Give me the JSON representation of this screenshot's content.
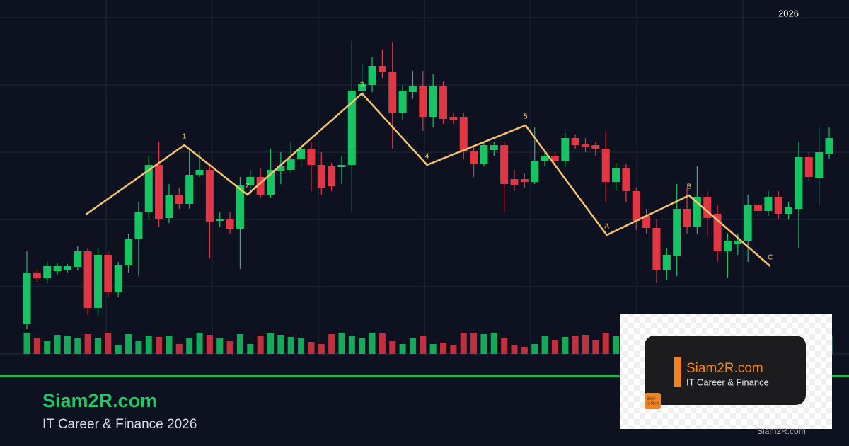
{
  "header": {
    "year": "2026"
  },
  "chart_data": {
    "type": "candlestick",
    "up_color": "#16c464",
    "down_color": "#e23645",
    "ylim": [
      0,
      500
    ],
    "yticks": [
      0,
      95,
      190,
      285,
      380,
      475
    ],
    "grid": true,
    "open": [
      42,
      115,
      107,
      117,
      118,
      123,
      145,
      65,
      140,
      87,
      125,
      162,
      200,
      267,
      192,
      225,
      212,
      253,
      260,
      188,
      190,
      177,
      238,
      250,
      225,
      258,
      260,
      275,
      290,
      267,
      265,
      264,
      267,
      372,
      380,
      407,
      398,
      340,
      370,
      378,
      335,
      378,
      335,
      335,
      287,
      268,
      288,
      295,
      247,
      247,
      243,
      273,
      280,
      272,
      305,
      297,
      295,
      290,
      243,
      262,
      230,
      195,
      178,
      118,
      138,
      205,
      180,
      222,
      198,
      145,
      155,
      160,
      210,
      202,
      222,
      198,
      205,
      278,
      248,
      282
    ],
    "high": [
      145,
      120,
      130,
      128,
      127,
      152,
      150,
      150,
      145,
      130,
      170,
      215,
      280,
      300,
      240,
      235,
      290,
      285,
      270,
      200,
      200,
      250,
      260,
      262,
      290,
      285,
      300,
      300,
      300,
      285,
      270,
      280,
      442,
      410,
      420,
      430,
      440,
      380,
      400,
      400,
      395,
      385,
      340,
      340,
      295,
      300,
      300,
      300,
      260,
      255,
      320,
      285,
      285,
      312,
      310,
      305,
      300,
      315,
      270,
      268,
      235,
      205,
      190,
      150,
      240,
      235,
      265,
      230,
      210,
      170,
      170,
      225,
      215,
      230,
      230,
      215,
      300,
      285,
      322,
      320
    ],
    "low": [
      35,
      102,
      100,
      112,
      115,
      118,
      55,
      55,
      80,
      80,
      115,
      110,
      190,
      180,
      185,
      205,
      205,
      250,
      135,
      180,
      170,
      120,
      225,
      220,
      220,
      240,
      255,
      265,
      230,
      225,
      230,
      240,
      200,
      360,
      370,
      390,
      290,
      330,
      360,
      315,
      320,
      325,
      325,
      275,
      250,
      265,
      280,
      200,
      230,
      235,
      240,
      265,
      265,
      265,
      290,
      285,
      280,
      215,
      230,
      215,
      175,
      170,
      100,
      105,
      110,
      170,
      170,
      165,
      130,
      108,
      140,
      130,
      195,
      195,
      190,
      190,
      150,
      245,
      210,
      275
    ],
    "close": [
      115,
      107,
      124,
      124,
      124,
      145,
      65,
      140,
      87,
      125,
      162,
      200,
      267,
      190,
      225,
      212,
      253,
      260,
      187,
      190,
      177,
      238,
      250,
      225,
      260,
      265,
      275,
      290,
      267,
      235,
      237,
      267,
      372,
      382,
      407,
      398,
      340,
      372,
      378,
      335,
      378,
      332,
      330,
      287,
      268,
      295,
      295,
      240,
      238,
      243,
      273,
      280,
      272,
      305,
      295,
      293,
      290,
      243,
      262,
      230,
      188,
      178,
      118,
      140,
      205,
      180,
      222,
      192,
      145,
      160,
      160,
      210,
      202,
      222,
      198,
      207,
      278,
      250,
      285,
      305
    ],
    "volume": [
      30,
      22,
      18,
      27,
      26,
      22,
      28,
      23,
      30,
      12,
      28,
      18,
      26,
      24,
      26,
      14,
      22,
      30,
      27,
      22,
      18,
      28,
      14,
      26,
      30,
      27,
      24,
      22,
      17,
      14,
      28,
      30,
      26,
      22,
      30,
      29,
      18,
      14,
      22,
      26,
      14,
      16,
      12,
      30,
      30,
      28,
      30,
      22,
      12,
      10,
      14,
      26,
      20,
      24,
      26,
      27,
      20,
      30,
      25,
      27,
      22,
      30,
      27,
      18,
      25,
      29,
      26,
      22,
      24,
      30,
      27,
      25,
      18,
      24,
      28,
      30,
      25,
      27,
      22,
      26
    ],
    "wave": {
      "color": "#f7c46c",
      "x": [
        5.8,
        15.5,
        21.7,
        33.0,
        39.4,
        49.1,
        57.1,
        65.2,
        73.2
      ],
      "y": [
        197,
        295,
        225,
        368,
        267,
        323,
        168,
        224,
        124
      ],
      "labels": [
        null,
        "1",
        "2",
        "3",
        "4",
        "5",
        "A",
        "B",
        "C"
      ]
    }
  },
  "footer": {
    "title": "Siam2R.com",
    "subtitle": "IT Career & Finance 2026"
  },
  "logo": {
    "name": "Siam2R.com",
    "tagline": "IT Career & Finance",
    "badge": [
      "Siam",
      "to Rich"
    ],
    "watermark": "Siam2R.com"
  }
}
